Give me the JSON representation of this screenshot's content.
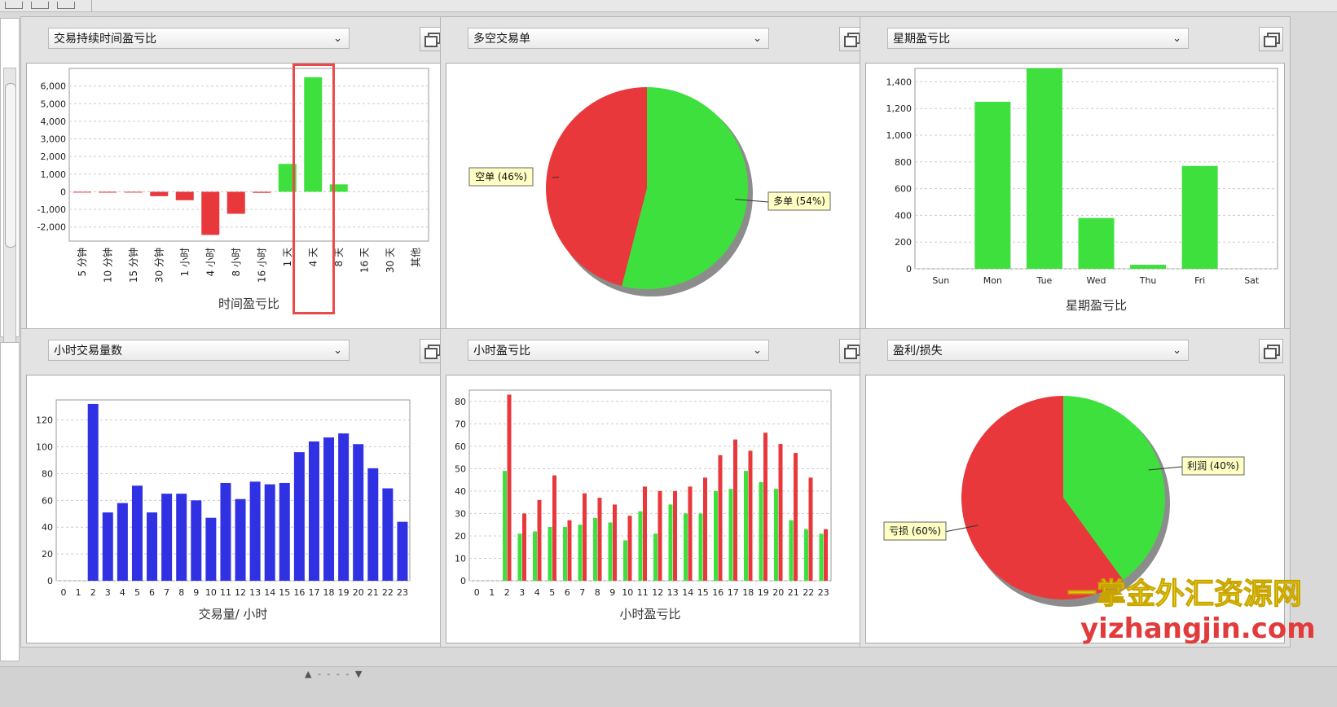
{
  "colors": {
    "green": "#3ee03e",
    "red": "#e8383b",
    "blue": "#3131e4",
    "highlight": "#ec4a4a"
  },
  "panels": [
    {
      "id": "p1",
      "select_label": "交易持续时间盈亏比",
      "caption": "时间盈亏比"
    },
    {
      "id": "p2",
      "select_label": "多空交易单",
      "caption": ""
    },
    {
      "id": "p3",
      "select_label": "星期盈亏比",
      "caption": "星期盈亏比"
    },
    {
      "id": "p4",
      "select_label": "小时交易量数",
      "caption": "交易量/ 小时"
    },
    {
      "id": "p5",
      "select_label": "小时盈亏比",
      "caption": "小时盈亏比"
    },
    {
      "id": "p6",
      "select_label": "盈利/损失",
      "caption": ""
    }
  ],
  "watermark": {
    "line1": "一掌金外汇资源网",
    "line2": "yizhangjin.com"
  },
  "chart_data": [
    {
      "type": "bar",
      "panel": "p1",
      "categories": [
        "5 分钟",
        "10 分钟",
        "15 分钟",
        "30 分钟",
        "1 小时",
        "4 小时",
        "8 小时",
        "16 小时",
        "1 天",
        "4 天",
        "8 天",
        "16 天",
        "30 天",
        "其他"
      ],
      "values": [
        -30,
        -50,
        -40,
        -250,
        -480,
        -2450,
        -1250,
        -60,
        1580,
        6500,
        420,
        0,
        0,
        0
      ],
      "ylim": [
        -2800,
        7000
      ],
      "yticks": [
        -2000,
        -1000,
        0,
        1000,
        2000,
        3000,
        4000,
        5000,
        6000
      ],
      "ytick_labels": [
        "-2,000",
        "-1,000",
        "0",
        "1,000",
        "2,000",
        "3,000",
        "4,000",
        "5,000",
        "6,000"
      ],
      "xlabel": "时间盈亏比",
      "highlight_category": "4 天"
    },
    {
      "type": "pie",
      "panel": "p2",
      "slices": [
        {
          "label": "多单 (54%)",
          "value": 54,
          "color": "#3ee03e"
        },
        {
          "label": "空单 (46%)",
          "value": 46,
          "color": "#e8383b"
        }
      ]
    },
    {
      "type": "bar",
      "panel": "p3",
      "categories": [
        "Sun",
        "Mon",
        "Tue",
        "Wed",
        "Thu",
        "Fri",
        "Sat"
      ],
      "values": [
        0,
        1250,
        1500,
        380,
        30,
        770,
        0
      ],
      "ylim": [
        0,
        1500
      ],
      "yticks": [
        0,
        200,
        400,
        600,
        800,
        1000,
        1200,
        1400
      ],
      "ytick_labels": [
        "0",
        "200",
        "400",
        "600",
        "800",
        "1,000",
        "1,200",
        "1,400"
      ],
      "xlabel": "星期盈亏比"
    },
    {
      "type": "bar",
      "panel": "p4",
      "categories": [
        "0",
        "1",
        "2",
        "3",
        "4",
        "5",
        "6",
        "7",
        "8",
        "9",
        "10",
        "11",
        "12",
        "13",
        "14",
        "15",
        "16",
        "17",
        "18",
        "19",
        "20",
        "21",
        "22",
        "23"
      ],
      "values": [
        0,
        0,
        132,
        51,
        58,
        71,
        51,
        65,
        65,
        60,
        47,
        73,
        61,
        74,
        72,
        73,
        96,
        104,
        107,
        110,
        102,
        84,
        69,
        44
      ],
      "ylim": [
        0,
        135
      ],
      "yticks": [
        0,
        20,
        40,
        60,
        80,
        100,
        120
      ],
      "ytick_labels": [
        "0",
        "20",
        "40",
        "60",
        "80",
        "100",
        "120"
      ],
      "xlabel": "交易量/ 小时"
    },
    {
      "type": "bar",
      "panel": "p5",
      "categories": [
        "0",
        "1",
        "2",
        "3",
        "4",
        "5",
        "6",
        "7",
        "8",
        "9",
        "10",
        "11",
        "12",
        "13",
        "14",
        "15",
        "16",
        "17",
        "18",
        "19",
        "20",
        "21",
        "22",
        "23"
      ],
      "series": [
        {
          "color": "#3ee03e",
          "values": [
            0,
            0,
            49,
            21,
            22,
            24,
            24,
            25,
            28,
            26,
            18,
            31,
            21,
            34,
            30,
            30,
            40,
            41,
            49,
            44,
            41,
            27,
            23,
            21
          ]
        },
        {
          "color": "#e8383b",
          "values": [
            0,
            0,
            83,
            30,
            36,
            47,
            27,
            39,
            37,
            34,
            29,
            42,
            40,
            40,
            42,
            46,
            56,
            63,
            58,
            66,
            61,
            57,
            46,
            23
          ]
        }
      ],
      "ylim": [
        0,
        85
      ],
      "yticks": [
        0,
        10,
        20,
        30,
        40,
        50,
        60,
        70,
        80
      ],
      "ytick_labels": [
        "0",
        "10",
        "20",
        "30",
        "40",
        "50",
        "60",
        "70",
        "80"
      ],
      "xlabel": "小时盈亏比"
    },
    {
      "type": "pie",
      "panel": "p6",
      "slices": [
        {
          "label": "利润 (40%)",
          "value": 40,
          "color": "#3ee03e"
        },
        {
          "label": "亏损 (60%)",
          "value": 60,
          "color": "#e8383b"
        }
      ]
    }
  ]
}
